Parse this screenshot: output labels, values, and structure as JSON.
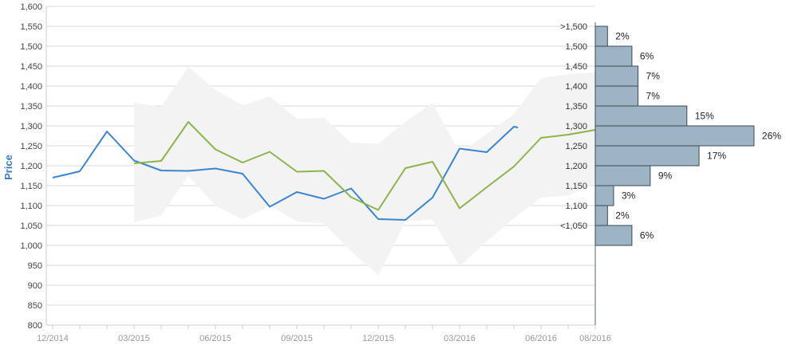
{
  "chart_data": {
    "type": "line",
    "ylabel": "Price",
    "ylim": [
      800,
      1600
    ],
    "yticks": [
      "800",
      "850",
      "900",
      "950",
      "1,000",
      "1,050",
      "1,100",
      "1,150",
      "1,200",
      "1,250",
      "1,300",
      "1,350",
      "1,400",
      "1,450",
      "1,500",
      "1,550",
      "1,600"
    ],
    "xlim_months": [
      0,
      20
    ],
    "xticks": [
      {
        "label": "12/2014",
        "m": 0
      },
      {
        "label": "03/2015",
        "m": 3
      },
      {
        "label": "06/2015",
        "m": 6
      },
      {
        "label": "09/2015",
        "m": 9
      },
      {
        "label": "12/2015",
        "m": 12
      },
      {
        "label": "03/2016",
        "m": 15
      },
      {
        "label": "06/2016",
        "m": 18
      },
      {
        "label": "08/2016",
        "m": 20
      }
    ],
    "grid": true,
    "series": [
      {
        "color": "#3a85d0",
        "points": [
          [
            0,
            1170
          ],
          [
            1,
            1186
          ],
          [
            2,
            1286
          ],
          [
            3,
            1213
          ],
          [
            4,
            1188
          ],
          [
            5,
            1187
          ],
          [
            6,
            1193
          ],
          [
            7,
            1180
          ],
          [
            8,
            1097
          ],
          [
            9,
            1134
          ],
          [
            10,
            1117
          ],
          [
            11,
            1143
          ],
          [
            12,
            1066
          ],
          [
            13,
            1064
          ],
          [
            14,
            1120
          ],
          [
            15,
            1243
          ],
          [
            16,
            1234
          ],
          [
            17,
            1298
          ],
          [
            17.15,
            1296
          ]
        ]
      },
      {
        "color": "#8db44b",
        "points": [
          [
            3,
            1206
          ],
          [
            4,
            1212
          ],
          [
            5,
            1310
          ],
          [
            6,
            1241
          ],
          [
            7,
            1208
          ],
          [
            8,
            1235
          ],
          [
            9,
            1185
          ],
          [
            10,
            1187
          ],
          [
            11,
            1121
          ],
          [
            12,
            1089
          ],
          [
            13,
            1194
          ],
          [
            14,
            1210
          ],
          [
            15,
            1093
          ],
          [
            16,
            1146
          ],
          [
            17,
            1198
          ],
          [
            18,
            1270
          ],
          [
            19,
            1278
          ],
          [
            20,
            1290
          ],
          [
            20.05,
            1277
          ]
        ]
      }
    ],
    "band": {
      "color": "#f3f3f3",
      "upper": [
        [
          3,
          1358
        ],
        [
          4,
          1348
        ],
        [
          5,
          1448
        ],
        [
          6,
          1390
        ],
        [
          7,
          1352
        ],
        [
          8,
          1374
        ],
        [
          9,
          1318
        ],
        [
          10,
          1320
        ],
        [
          11,
          1258
        ],
        [
          12,
          1255
        ],
        [
          13,
          1310
        ],
        [
          14,
          1358
        ],
        [
          15,
          1232
        ],
        [
          16,
          1280
        ],
        [
          17,
          1330
        ],
        [
          18,
          1420
        ],
        [
          19,
          1430
        ],
        [
          20,
          1435
        ]
      ],
      "lower": [
        [
          3,
          1058
        ],
        [
          4,
          1075
        ],
        [
          5,
          1175
        ],
        [
          6,
          1100
        ],
        [
          7,
          1065
        ],
        [
          8,
          1100
        ],
        [
          9,
          1060
        ],
        [
          10,
          1055
        ],
        [
          11,
          985
        ],
        [
          12,
          925
        ],
        [
          13,
          1060
        ],
        [
          14,
          1065
        ],
        [
          15,
          948
        ],
        [
          16,
          1010
        ],
        [
          17,
          1068
        ],
        [
          18,
          1120
        ],
        [
          19,
          1125
        ],
        [
          20,
          1155
        ]
      ]
    },
    "histogram": {
      "color": "#9db4c4",
      "bins": [
        {
          "label": ">1,500",
          "low": 1500,
          "high": 1550,
          "percent": 2,
          "text": "2%"
        },
        {
          "label": "1,500",
          "low": 1450,
          "high": 1500,
          "percent": 6,
          "text": "6%"
        },
        {
          "label": "1,450",
          "low": 1400,
          "high": 1450,
          "percent": 7,
          "text": "7%"
        },
        {
          "label": "1,400",
          "low": 1350,
          "high": 1400,
          "percent": 7,
          "text": "7%"
        },
        {
          "label": "1,350",
          "low": 1300,
          "high": 1350,
          "percent": 15,
          "text": "15%"
        },
        {
          "label": "1,300",
          "low": 1250,
          "high": 1300,
          "percent": 26,
          "text": "26%"
        },
        {
          "label": "1,250",
          "low": 1200,
          "high": 1250,
          "percent": 17,
          "text": "17%"
        },
        {
          "label": "1,200",
          "low": 1150,
          "high": 1200,
          "percent": 9,
          "text": "9%"
        },
        {
          "label": "1,150",
          "low": 1100,
          "high": 1150,
          "percent": 3,
          "text": "3%"
        },
        {
          "label": "1,100",
          "low": 1050,
          "high": 1100,
          "percent": 2,
          "text": "2%"
        },
        {
          "label": "<1,050",
          "low": 1000,
          "high": 1050,
          "percent": 6,
          "text": "6%"
        }
      ]
    }
  }
}
